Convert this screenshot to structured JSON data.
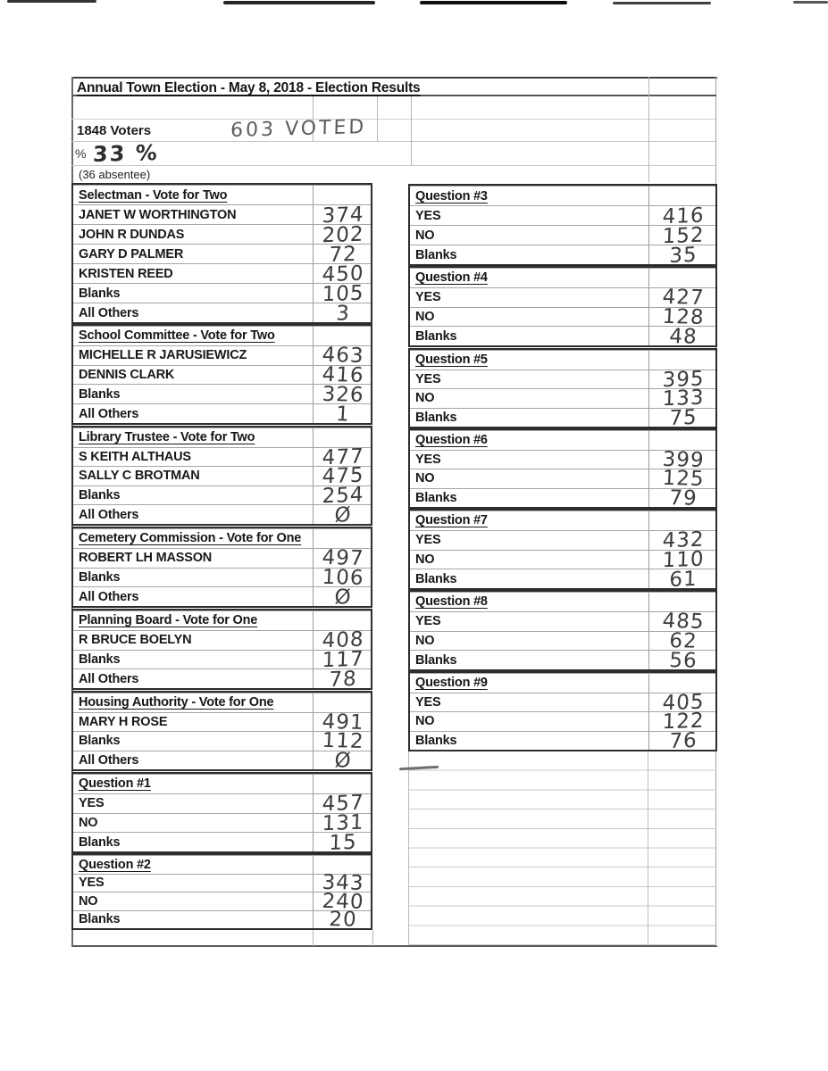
{
  "document": {
    "title": "Annual Town Election - May 8, 2018 - Election Results",
    "voters_count_label": "1848 Voters",
    "voted_handwritten": "603 VOTED",
    "percent_symbol": "%",
    "percent_handwritten": "33 %",
    "absentee_note": "(36 absentee)"
  },
  "left_sections": [
    {
      "title": "Selectman - Vote for Two",
      "rows": [
        {
          "label": "JANET W WORTHINGTON",
          "value": "374"
        },
        {
          "label": "JOHN R DUNDAS",
          "value": "202"
        },
        {
          "label": "GARY D PALMER",
          "value": "72"
        },
        {
          "label": "KRISTEN REED",
          "value": "450"
        },
        {
          "label": "Blanks",
          "value": "105"
        },
        {
          "label": "All Others",
          "value": "3"
        }
      ]
    },
    {
      "title": "School Committee - Vote for Two",
      "rows": [
        {
          "label": "MICHELLE R JARUSIEWICZ",
          "value": "463"
        },
        {
          "label": "DENNIS CLARK",
          "value": "416"
        },
        {
          "label": "Blanks",
          "value": "326"
        },
        {
          "label": "All Others",
          "value": "1"
        }
      ]
    },
    {
      "title": "Library Trustee - Vote for Two",
      "rows": [
        {
          "label": "S KEITH ALTHAUS",
          "value": "477"
        },
        {
          "label": "SALLY C BROTMAN",
          "value": "475"
        },
        {
          "label": "Blanks",
          "value": "254"
        },
        {
          "label": "All Others",
          "value": "Ø"
        }
      ]
    },
    {
      "title": "Cemetery Commission - Vote for One",
      "rows": [
        {
          "label": "ROBERT LH MASSON",
          "value": "497"
        },
        {
          "label": "Blanks",
          "value": "106"
        },
        {
          "label": "All Others",
          "value": "Ø"
        }
      ]
    },
    {
      "title": "Planning Board - Vote for One",
      "rows": [
        {
          "label": "R BRUCE BOELYN",
          "value": "408"
        },
        {
          "label": "Blanks",
          "value": "117"
        },
        {
          "label": "All Others",
          "value": "78"
        }
      ]
    },
    {
      "title": "Housing Authority - Vote for One",
      "rows": [
        {
          "label": "MARY H ROSE",
          "value": "491"
        },
        {
          "label": "Blanks",
          "value": "112"
        },
        {
          "label": "All Others",
          "value": "Ø"
        }
      ]
    },
    {
      "title": "Question #1",
      "rows": [
        {
          "label": "YES",
          "value": "457"
        },
        {
          "label": "NO",
          "value": "131"
        },
        {
          "label": "Blanks",
          "value": "15"
        }
      ]
    },
    {
      "title": "Question #2",
      "rows": [
        {
          "label": "YES",
          "value": "343"
        },
        {
          "label": "NO",
          "value": "240"
        },
        {
          "label": "Blanks",
          "value": "20"
        }
      ]
    }
  ],
  "right_sections": [
    {
      "title": "Question #3",
      "rows": [
        {
          "label": "YES",
          "value": "416"
        },
        {
          "label": "NO",
          "value": "152"
        },
        {
          "label": "Blanks",
          "value": "35"
        }
      ]
    },
    {
      "title": "Question #4",
      "rows": [
        {
          "label": "YES",
          "value": "427"
        },
        {
          "label": "NO",
          "value": "128"
        },
        {
          "label": "Blanks",
          "value": "48"
        }
      ]
    },
    {
      "title": "Question #5",
      "rows": [
        {
          "label": "YES",
          "value": "395"
        },
        {
          "label": "NO",
          "value": "133"
        },
        {
          "label": "Blanks",
          "value": "75"
        }
      ]
    },
    {
      "title": "Question #6",
      "rows": [
        {
          "label": "YES",
          "value": "399"
        },
        {
          "label": "NO",
          "value": "125"
        },
        {
          "label": "Blanks",
          "value": "79"
        }
      ]
    },
    {
      "title": "Question #7",
      "rows": [
        {
          "label": "YES",
          "value": "432"
        },
        {
          "label": "NO",
          "value": "110"
        },
        {
          "label": "Blanks",
          "value": "61"
        }
      ]
    },
    {
      "title": "Question #8",
      "rows": [
        {
          "label": "YES",
          "value": "485"
        },
        {
          "label": "NO",
          "value": "62"
        },
        {
          "label": "Blanks",
          "value": "56"
        }
      ]
    },
    {
      "title": "Question #9",
      "rows": [
        {
          "label": "YES",
          "value": "405"
        },
        {
          "label": "NO",
          "value": "122"
        },
        {
          "label": "Blanks",
          "value": "76"
        }
      ]
    }
  ]
}
